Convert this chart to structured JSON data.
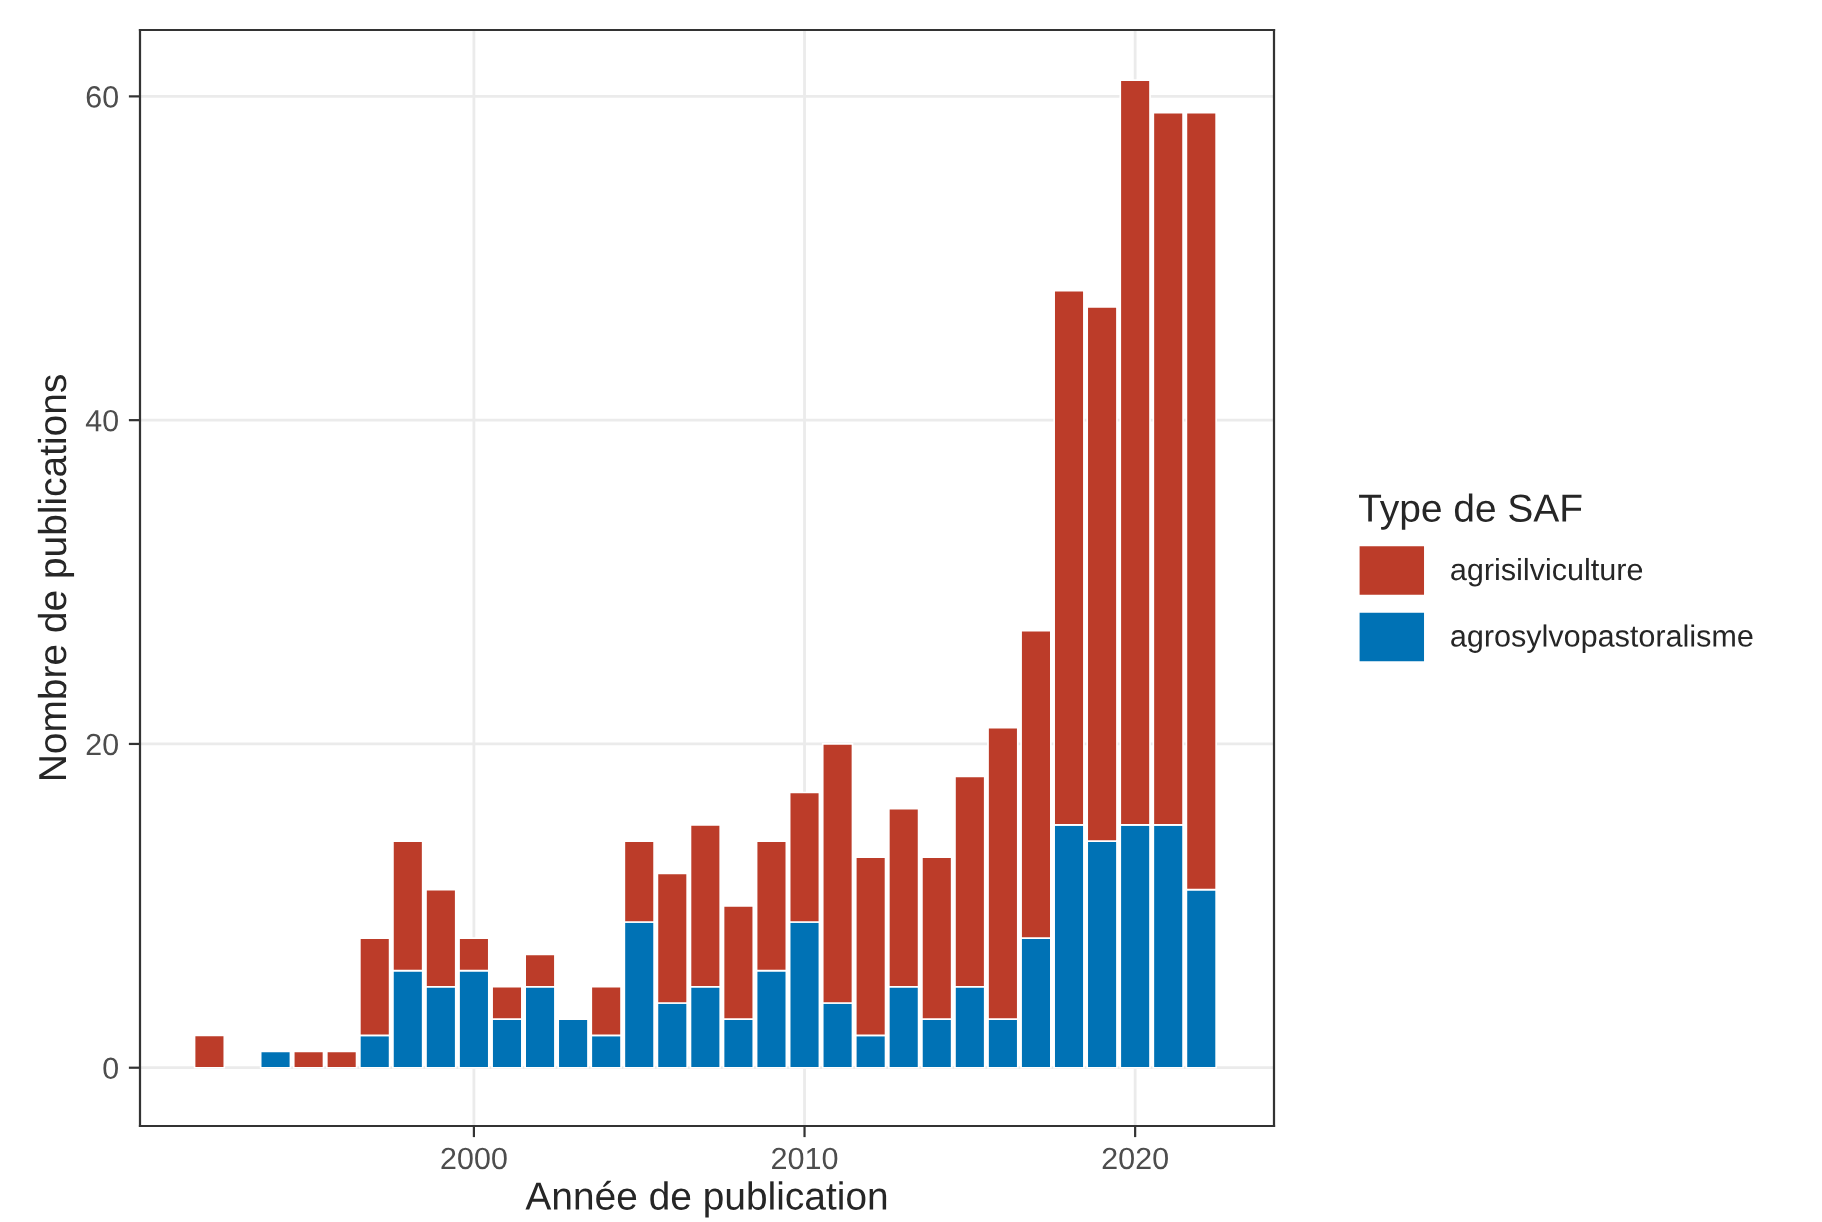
{
  "chart_data": {
    "type": "bar",
    "stacked": true,
    "xlabel": "Année de publication",
    "ylabel": "Nombre de publications",
    "legend_title": "Type de SAF",
    "legend": "right",
    "grid": true,
    "x": [
      1992,
      1993,
      1994,
      1995,
      1996,
      1997,
      1998,
      1999,
      2000,
      2001,
      2002,
      2003,
      2004,
      2005,
      2006,
      2007,
      2008,
      2009,
      2010,
      2011,
      2012,
      2013,
      2014,
      2015,
      2016,
      2017,
      2018,
      2019,
      2020,
      2021,
      2022
    ],
    "series": [
      {
        "name": "agrosylvopastoralisme",
        "color": "#0072b5",
        "values": [
          0,
          null,
          1,
          0,
          0,
          2,
          6,
          5,
          6,
          3,
          5,
          3,
          2,
          9,
          4,
          5,
          3,
          6,
          9,
          4,
          2,
          5,
          3,
          5,
          3,
          8,
          15,
          14,
          15,
          15,
          11
        ]
      },
      {
        "name": "agrisilviculture",
        "color": "#bc3c29",
        "values": [
          2,
          null,
          0,
          1,
          1,
          6,
          8,
          6,
          2,
          2,
          2,
          0,
          3,
          5,
          8,
          10,
          7,
          8,
          8,
          16,
          11,
          11,
          10,
          13,
          18,
          19,
          33,
          33,
          46,
          44,
          48
        ]
      }
    ],
    "xlim": [
      1989.9,
      2024.2
    ],
    "xticks": [
      2000,
      2010,
      2020
    ],
    "ylim": [
      -3.6,
      64.1
    ],
    "yticks": [
      0,
      20,
      40,
      60
    ]
  }
}
